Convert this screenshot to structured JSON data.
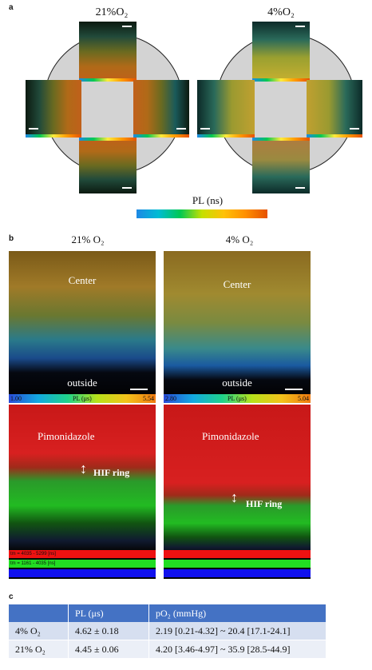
{
  "panel_a": {
    "letter": "a",
    "left_label": "21%O₂",
    "right_label": "4%O₂",
    "pl_label": "PL (ns)"
  },
  "panel_b": {
    "letter": "b",
    "left_label": "21% O₂",
    "right_label": "4% O₂",
    "center_label": "Center",
    "outside_label": "outside",
    "left_bar": {
      "min": "1.00",
      "mid": "PL (μs)",
      "max": "5.54"
    },
    "right_bar": {
      "min": "2.80",
      "mid": "PL (μs)",
      "max": "5.04"
    },
    "pimo_label": "Pimonidazole",
    "hif_label": "HIF ring",
    "legend_left": [
      "tm = 4035 - 5299 [ns]",
      "tm = 1161 - 4035 [ns]",
      ""
    ],
    "legend_right": [
      "",
      "",
      ""
    ]
  },
  "panel_c": {
    "letter": "c",
    "headers": [
      "",
      "PL (μs)",
      "pO₂ (mmHg)"
    ],
    "rows": [
      [
        "4% O₂",
        "4.62 ± 0.18",
        "2.19 [0.21-4.32] ~ 20.4 [17.1-24.1]"
      ],
      [
        "21% O₂",
        "4.45 ± 0.06",
        "4.20 [3.46-4.97] ~ 35.9 [28.5-44.9]"
      ]
    ]
  },
  "colors": {
    "table_header": "#4472c4",
    "row_1": "#d6dff0",
    "row_2": "#ebeff7",
    "hypoxia_red": "#e02020",
    "hif_green": "#22cc22"
  }
}
